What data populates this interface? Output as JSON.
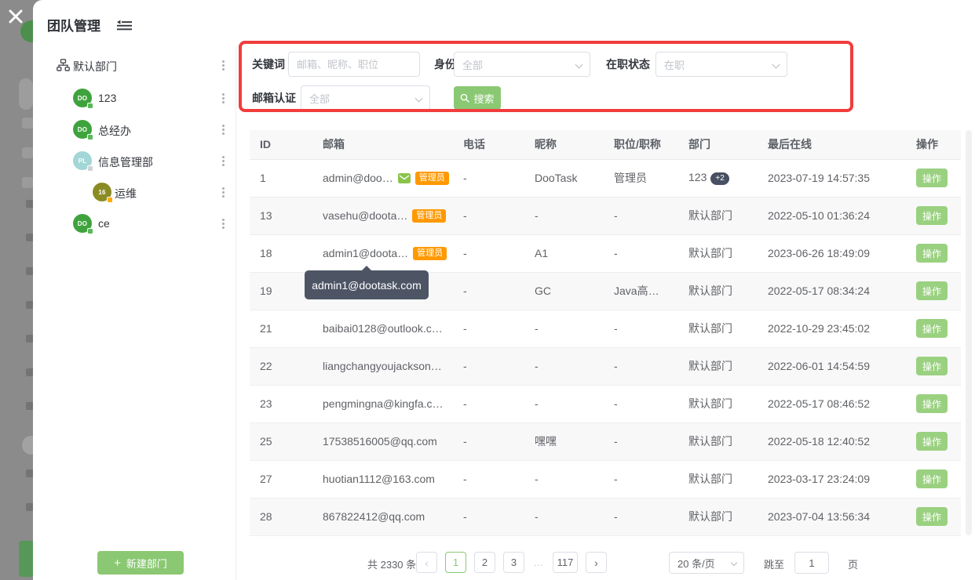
{
  "overlay": {
    "close_icon": "x"
  },
  "modal": {
    "title": "团队管理"
  },
  "sidebar": {
    "root_label": "默认部门",
    "items": [
      {
        "label": "123",
        "avatar_text": "DO",
        "avatar_color": "#3fa33d",
        "status_color": "#58b957",
        "indent": 1
      },
      {
        "label": "总经办",
        "avatar_text": "DO",
        "avatar_color": "#3fa33d",
        "status_color": "#58b957",
        "indent": 1
      },
      {
        "label": "信息管理部",
        "avatar_text": "PL",
        "avatar_color": "#a3d6d6",
        "status_color": "#cfd3d4",
        "indent": 1
      },
      {
        "label": "运维",
        "avatar_text": "16",
        "avatar_color": "#8b8b25",
        "status_color": "#ffaa00",
        "indent": 2
      },
      {
        "label": "ce",
        "avatar_text": "DO",
        "avatar_color": "#3fa33d",
        "status_color": "#58b957",
        "indent": 1
      }
    ],
    "new_department_label": "新建部门"
  },
  "filters": {
    "keyword_label": "关键词",
    "keyword_placeholder": "邮箱、昵称、职位",
    "identity_label": "身份",
    "identity_value": "全部",
    "status_label": "在职状态",
    "status_value": "在职",
    "email_verify_label": "邮箱认证",
    "email_verify_value": "全部",
    "search_label": "搜索"
  },
  "table": {
    "headers": [
      "ID",
      "邮箱",
      "电话",
      "昵称",
      "职位/职称",
      "部门",
      "最后在线",
      "操作"
    ],
    "rows": [
      {
        "id": "1",
        "email": "admin@doo…",
        "email_verified": true,
        "admin_badge": "管理员",
        "phone": "-",
        "nickname": "DooTask",
        "title": "管理员",
        "department": "123",
        "dept_extra": "+2",
        "last_online": "2023-07-19 14:57:35",
        "action": "操作"
      },
      {
        "id": "13",
        "email": "vasehu@doota…",
        "email_verified": false,
        "admin_badge": "管理员",
        "phone": "-",
        "nickname": "-",
        "title": "-",
        "department": "默认部门",
        "dept_extra": "",
        "last_online": "2022-05-10 01:36:24",
        "action": "操作"
      },
      {
        "id": "18",
        "email": "admin1@doota…",
        "email_verified": false,
        "admin_badge": "管理员",
        "phone": "-",
        "nickname": "A1",
        "title": "-",
        "department": "默认部门",
        "dept_extra": "",
        "last_online": "2023-06-26 18:49:09",
        "action": "操作"
      },
      {
        "id": "19",
        "email": "",
        "email_verified": false,
        "admin_badge": "",
        "phone": "-",
        "nickname": "GC",
        "title": "Java高…",
        "department": "默认部门",
        "dept_extra": "",
        "last_online": "2022-05-17 08:34:24",
        "action": "操作"
      },
      {
        "id": "21",
        "email": "baibai0128@outlook.c…",
        "email_verified": false,
        "admin_badge": "",
        "phone": "-",
        "nickname": "-",
        "title": "-",
        "department": "默认部门",
        "dept_extra": "",
        "last_online": "2022-10-29 23:45:02",
        "action": "操作"
      },
      {
        "id": "22",
        "email": "liangchangyoujackson…",
        "email_verified": false,
        "admin_badge": "",
        "phone": "-",
        "nickname": "-",
        "title": "-",
        "department": "默认部门",
        "dept_extra": "",
        "last_online": "2022-06-01 14:54:59",
        "action": "操作"
      },
      {
        "id": "23",
        "email": "pengmingna@kingfa.c…",
        "email_verified": false,
        "admin_badge": "",
        "phone": "-",
        "nickname": "-",
        "title": "-",
        "department": "默认部门",
        "dept_extra": "",
        "last_online": "2022-05-17 08:46:52",
        "action": "操作"
      },
      {
        "id": "25",
        "email": "17538516005@qq.com",
        "email_verified": false,
        "admin_badge": "",
        "phone": "-",
        "nickname": "嘿嘿",
        "title": "-",
        "department": "默认部门",
        "dept_extra": "",
        "last_online": "2022-05-18 12:40:52",
        "action": "操作"
      },
      {
        "id": "27",
        "email": "huotian1112@163.com",
        "email_verified": false,
        "admin_badge": "",
        "phone": "-",
        "nickname": "-",
        "title": "-",
        "department": "默认部门",
        "dept_extra": "",
        "last_online": "2023-03-17 23:24:09",
        "action": "操作"
      },
      {
        "id": "28",
        "email": "867822412@qq.com",
        "email_verified": false,
        "admin_badge": "",
        "phone": "-",
        "nickname": "-",
        "title": "-",
        "department": "默认部门",
        "dept_extra": "",
        "last_online": "2023-07-04 13:56:34",
        "action": "操作"
      }
    ]
  },
  "tooltip": {
    "text": "admin1@dootask.com"
  },
  "pagination": {
    "total": "共 2330 条",
    "prev_icon": "‹",
    "next_icon": "›",
    "pages": [
      "1",
      "2",
      "3",
      "…",
      "117"
    ],
    "active": "1",
    "page_size": "20 条/页",
    "jump_label": "跳至",
    "jump_value": "1",
    "jump_suffix": "页"
  },
  "colors": {
    "accent_green": "#8bc873",
    "action_button_green": "#9ad180",
    "admin_badge_orange": "#ff9900",
    "annotation_red": "#f23c3c",
    "tooltip_bg": "#4d5565",
    "table_stripe": "#f8f8f9"
  }
}
